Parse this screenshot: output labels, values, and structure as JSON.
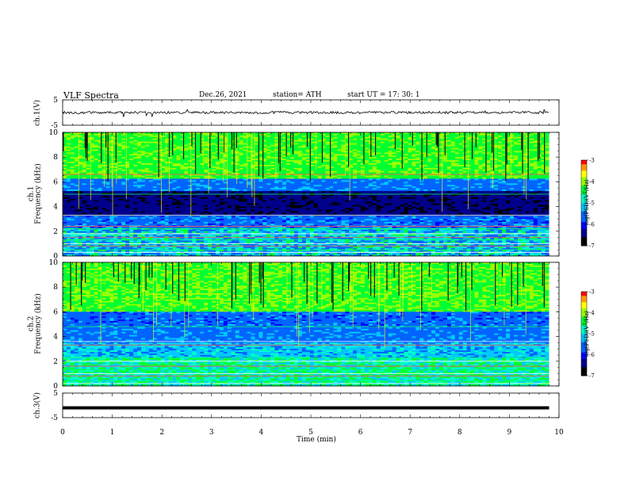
{
  "header": {
    "title": "VLF  Spectra",
    "date": "Dec.26, 2021",
    "station": "station= ATH",
    "start": "start  UT  =    17: 30: 1"
  },
  "chart_data": [
    {
      "type": "line",
      "name": "ch1-waveform",
      "ylabel": "ch.1(V)",
      "yticks": [
        "5",
        "-5"
      ],
      "ylim": [
        -5,
        5
      ],
      "xlim": [
        0,
        10
      ],
      "trace_level": 0
    },
    {
      "type": "heatmap",
      "name": "ch1-spectrogram",
      "ylabel": "ch.1\nFrequency  (kHz)",
      "yticks": [
        "0",
        "2",
        "4",
        "6",
        "8",
        "10"
      ],
      "ylim": [
        0,
        10
      ],
      "xlim": [
        0,
        9.8
      ],
      "colorbar": {
        "label": "log(PSD)(V²/Hz)",
        "ticks": [
          "-3",
          "-4",
          "-5",
          "-6",
          "-7"
        ],
        "range": [
          -7,
          -3
        ]
      }
    },
    {
      "type": "heatmap",
      "name": "ch2-spectrogram",
      "ylabel": "ch.2\nFrequency  (kHz)",
      "yticks": [
        "0",
        "2",
        "4",
        "6",
        "8",
        "10"
      ],
      "ylim": [
        0,
        10
      ],
      "xlim": [
        0,
        9.8
      ],
      "colorbar": {
        "label": "log(PSD)(V²/Hz)",
        "ticks": [
          "-3",
          "-4",
          "-5",
          "-6",
          "-7"
        ],
        "range": [
          -7,
          -3
        ]
      }
    },
    {
      "type": "line",
      "name": "ch3-waveform",
      "ylabel": "ch.3(V)",
      "yticks": [
        "5",
        "-5"
      ],
      "ylim": [
        -5,
        5
      ],
      "xlim": [
        0,
        10
      ],
      "trace_level": -1
    }
  ],
  "xaxis": {
    "label": "Time  (min)",
    "ticks": [
      "0",
      "1",
      "2",
      "3",
      "4",
      "5",
      "6",
      "7",
      "8",
      "9",
      "10"
    ]
  },
  "colors": {
    "colormap": [
      "#000000",
      "#00008b",
      "#0000ff",
      "#0064ff",
      "#00c8ff",
      "#00ffc8",
      "#00ff32",
      "#96ff00",
      "#ffff00",
      "#ff9600",
      "#ff0000",
      "#ffffff"
    ]
  }
}
